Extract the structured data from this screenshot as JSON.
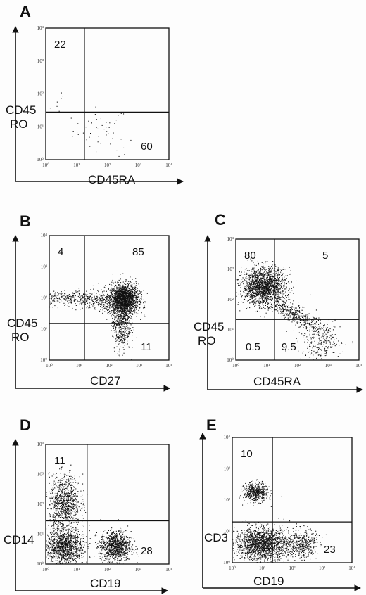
{
  "chart_data": [
    {
      "panel": "A",
      "type": "scatter",
      "xlabel": "CD45RA",
      "ylabel": [
        "CD45",
        "RO"
      ],
      "xscale": "log",
      "yscale": "log",
      "xlim": [
        1,
        10000
      ],
      "ylim": [
        1,
        10000
      ],
      "x_ticks": [
        "10⁰",
        "10¹",
        "10²",
        "10³",
        "10⁴"
      ],
      "y_ticks": [
        "10⁰",
        "10¹",
        "10²",
        "10³",
        "10⁴"
      ],
      "gates": {
        "x": 18,
        "y": 28
      },
      "quadrant_labels": [
        {
          "quadrant": "upper-left",
          "text": "22"
        },
        {
          "quadrant": "lower-right",
          "text": "60"
        }
      ],
      "clusters": [
        {
          "cx": 60,
          "cy": 8,
          "sx": 0.45,
          "sy": 0.35,
          "n": 45
        },
        {
          "cx": 4,
          "cy": 60,
          "sx": 0.3,
          "sy": 0.25,
          "n": 8
        },
        {
          "cx": 200,
          "cy": 2,
          "sx": 0.3,
          "sy": 0.2,
          "n": 6
        }
      ]
    },
    {
      "panel": "B",
      "type": "scatter",
      "xlabel": "CD27",
      "ylabel": [
        "CD45",
        "RO"
      ],
      "xscale": "log",
      "yscale": "log",
      "xlim": [
        1,
        10000
      ],
      "ylim": [
        1,
        10000
      ],
      "x_ticks": [
        "10⁰",
        "10¹",
        "10²",
        "10³",
        "10⁴"
      ],
      "y_ticks": [
        "10⁰",
        "10¹",
        "10²",
        "10³",
        "10⁴"
      ],
      "gates": {
        "x": 15,
        "y": 15
      },
      "quadrant_labels": [
        {
          "quadrant": "upper-left",
          "text": "4"
        },
        {
          "quadrant": "upper-right",
          "text": "85"
        },
        {
          "quadrant": "lower-right",
          "text": "11"
        }
      ],
      "clusters": [
        {
          "cx": 300,
          "cy": 90,
          "sx": 0.25,
          "sy": 0.25,
          "n": 2000
        },
        {
          "cx": 250,
          "cy": 15,
          "sx": 0.15,
          "sy": 0.45,
          "n": 500
        },
        {
          "cx": 4,
          "cy": 100,
          "sx": 0.45,
          "sy": 0.12,
          "n": 250
        },
        {
          "cx": 40,
          "cy": 80,
          "sx": 0.35,
          "sy": 0.15,
          "n": 200
        }
      ]
    },
    {
      "panel": "C",
      "type": "scatter",
      "xlabel": "CD45RA",
      "ylabel": [
        "CD45",
        "RO"
      ],
      "xscale": "log",
      "yscale": "log",
      "xlim": [
        1,
        10000
      ],
      "ylim": [
        1,
        10000
      ],
      "x_ticks": [
        "10⁰",
        "10¹",
        "10²",
        "10³",
        "10⁴"
      ],
      "y_ticks": [
        "10⁰",
        "10¹",
        "10²",
        "10³",
        "10⁴"
      ],
      "gates": {
        "x": 18,
        "y": 22
      },
      "quadrant_labels": [
        {
          "quadrant": "upper-left",
          "text": "80"
        },
        {
          "quadrant": "upper-right",
          "text": "5"
        },
        {
          "quadrant": "lower-left",
          "text": "0.5"
        },
        {
          "quadrant": "lower-right",
          "text": "9.5"
        }
      ],
      "clusters": [
        {
          "cx": 8,
          "cy": 280,
          "sx": 0.35,
          "sy": 0.3,
          "n": 1700
        },
        {
          "cx": 100,
          "cy": 30,
          "sx": 0.5,
          "sy": 0.3,
          "n": 400,
          "diag": true
        },
        {
          "cx": 500,
          "cy": 4,
          "sx": 0.35,
          "sy": 0.3,
          "n": 250
        }
      ]
    },
    {
      "panel": "D",
      "type": "scatter",
      "xlabel": "CD19",
      "ylabel": [
        "CD14"
      ],
      "xscale": "log",
      "yscale": "log",
      "xlim": [
        1,
        10000
      ],
      "ylim": [
        1,
        10000
      ],
      "x_ticks": [
        "10⁰",
        "10¹",
        "10²",
        "10³",
        "10⁴"
      ],
      "y_ticks": [
        "10⁰",
        "10¹",
        "10²",
        "10³",
        "10⁴"
      ],
      "gates": {
        "x": 22,
        "y": 28
      },
      "quadrant_labels": [
        {
          "quadrant": "upper-left",
          "text": "11"
        },
        {
          "quadrant": "lower-right",
          "text": "28"
        }
      ],
      "clusters": [
        {
          "cx": 4,
          "cy": 4,
          "sx": 0.3,
          "sy": 0.3,
          "n": 1200
        },
        {
          "cx": 180,
          "cy": 4,
          "sx": 0.25,
          "sy": 0.25,
          "n": 1000
        },
        {
          "cx": 4,
          "cy": 120,
          "sx": 0.25,
          "sy": 0.45,
          "n": 900
        }
      ]
    },
    {
      "panel": "E",
      "type": "scatter",
      "xlabel": "CD19",
      "ylabel": [
        "CD3"
      ],
      "xscale": "log",
      "yscale": "log",
      "xlim": [
        1,
        10000
      ],
      "ylim": [
        1,
        10000
      ],
      "x_ticks": [
        "10⁰",
        "10¹",
        "10²",
        "10³",
        "10⁴"
      ],
      "y_ticks": [
        "10⁰",
        "10¹",
        "10²",
        "10³",
        "10⁴"
      ],
      "gates": {
        "x": 22,
        "y": 20
      },
      "quadrant_labels": [
        {
          "quadrant": "upper-left",
          "text": "10"
        },
        {
          "quadrant": "lower-right",
          "text": "23"
        }
      ],
      "clusters": [
        {
          "cx": 6,
          "cy": 180,
          "sx": 0.2,
          "sy": 0.15,
          "n": 500
        },
        {
          "cx": 10,
          "cy": 4,
          "sx": 0.45,
          "sy": 0.25,
          "n": 1700
        },
        {
          "cx": 200,
          "cy": 4,
          "sx": 0.25,
          "sy": 0.25,
          "n": 400
        }
      ]
    }
  ]
}
